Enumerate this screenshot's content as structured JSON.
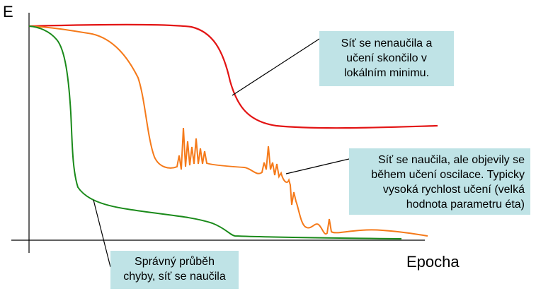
{
  "axes": {
    "y_label": "E",
    "x_label": "Epocha"
  },
  "colors": {
    "red_curve": "#e31414",
    "orange_curve": "#f57a1a",
    "green_curve": "#1a8a1a",
    "callout_bg": "#bfe3e6",
    "axis": "#000000"
  },
  "callouts": {
    "red": {
      "lines": [
        "Síť se nenaučila a",
        "učení skončilo v",
        "lokálním minimu."
      ]
    },
    "orange": {
      "lines": [
        "Síť se naučila, ale objevily se",
        "během učení oscilace. Typicky",
        "vysoká rychlost učení (velká",
        "hodnota parametru éta)"
      ]
    },
    "green": {
      "lines": [
        "Správný průběh",
        "chyby, síť se naučila"
      ]
    }
  }
}
